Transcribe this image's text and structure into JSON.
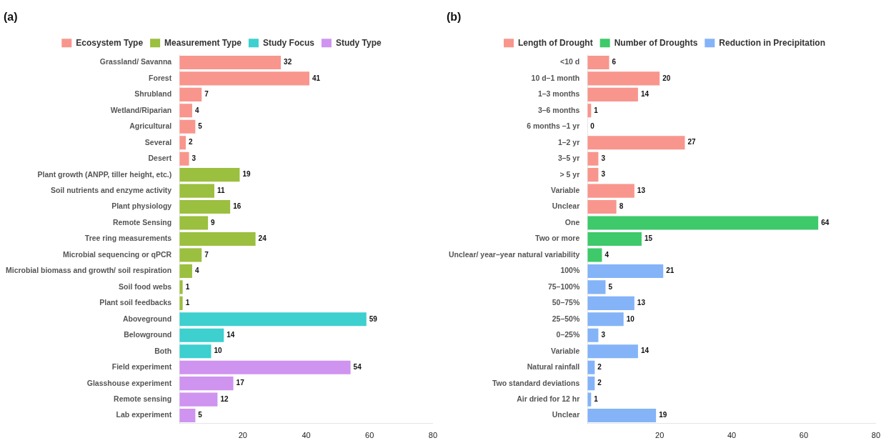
{
  "chart_data": [
    {
      "type": "bar",
      "title": "(a)",
      "orientation": "horizontal",
      "data_labels": true,
      "grid": false,
      "legend": "top",
      "categories": [
        "Grassland/ Savanna",
        "Forest",
        "Shrubland",
        "Wetland/Riparian",
        "Agricultural",
        "Several",
        "Desert",
        "Plant growth (ANPP, tiller height, etc.)",
        "Soil nutrients and enzyme activity",
        "Plant physiology",
        "Remote Sensing",
        "Tree ring measurements",
        "Microbial sequencing or qPCR",
        "Microbial biomass and growth/ soil respiration",
        "Soil food webs",
        "Plant soil feedbacks",
        "Aboveground",
        "Belowground",
        "Both",
        "Field experiment",
        "Glasshouse experiment",
        "Remote sensing",
        "Lab experiment"
      ],
      "series": [
        {
          "name": "Ecosystem Type",
          "color": "#f8968d",
          "values": [
            32,
            41,
            7,
            4,
            5,
            2,
            3,
            null,
            null,
            null,
            null,
            null,
            null,
            null,
            null,
            null,
            null,
            null,
            null,
            null,
            null,
            null,
            null
          ]
        },
        {
          "name": "Measurement Type",
          "color": "#9bbf3f",
          "values": [
            null,
            null,
            null,
            null,
            null,
            null,
            null,
            19,
            11,
            16,
            9,
            24,
            7,
            4,
            1,
            1,
            null,
            null,
            null,
            null,
            null,
            null,
            null
          ]
        },
        {
          "name": "Study Focus",
          "color": "#3ecfcf",
          "values": [
            null,
            null,
            null,
            null,
            null,
            null,
            null,
            null,
            null,
            null,
            null,
            null,
            null,
            null,
            null,
            null,
            59,
            14,
            10,
            null,
            null,
            null,
            null
          ]
        },
        {
          "name": "Study Type",
          "color": "#cf93f0",
          "values": [
            null,
            null,
            null,
            null,
            null,
            null,
            null,
            null,
            null,
            null,
            null,
            null,
            null,
            null,
            null,
            null,
            null,
            null,
            null,
            54,
            17,
            12,
            5
          ]
        }
      ],
      "xlim": [
        0,
        80
      ],
      "xticks": [
        20,
        40,
        60,
        80
      ]
    },
    {
      "type": "bar",
      "title": "(b)",
      "orientation": "horizontal",
      "data_labels": true,
      "grid": false,
      "legend": "top",
      "categories": [
        "<10 d",
        "10 d–1 month",
        "1–3 months",
        "3–6 months",
        "6 months –1 yr",
        "1–2 yr",
        "3–5 yr",
        "> 5 yr",
        "Variable",
        "Unclear",
        "One",
        "Two or more",
        "Unclear/ year–year natural variability",
        "100%",
        "75–100%",
        "50–75%",
        "25–50%",
        "0–25%",
        "Variable",
        "Natural rainfall",
        "Two standard deviations",
        "Air dried for 12 hr",
        "Unclear"
      ],
      "series": [
        {
          "name": "Length of Drought",
          "color": "#f8968d",
          "values": [
            6,
            20,
            14,
            1,
            0,
            27,
            3,
            3,
            13,
            8,
            null,
            null,
            null,
            null,
            null,
            null,
            null,
            null,
            null,
            null,
            null,
            null,
            null
          ]
        },
        {
          "name": "Number of Droughts",
          "color": "#3ec96a",
          "values": [
            null,
            null,
            null,
            null,
            null,
            null,
            null,
            null,
            null,
            null,
            64,
            15,
            4,
            null,
            null,
            null,
            null,
            null,
            null,
            null,
            null,
            null,
            null
          ]
        },
        {
          "name": "Reduction in Precipitation",
          "color": "#84b3f8",
          "values": [
            null,
            null,
            null,
            null,
            null,
            null,
            null,
            null,
            null,
            null,
            null,
            null,
            null,
            21,
            5,
            13,
            10,
            3,
            14,
            2,
            2,
            1,
            19
          ]
        }
      ],
      "xlim": [
        0,
        80
      ],
      "xticks": [
        20,
        40,
        60,
        80
      ]
    }
  ]
}
